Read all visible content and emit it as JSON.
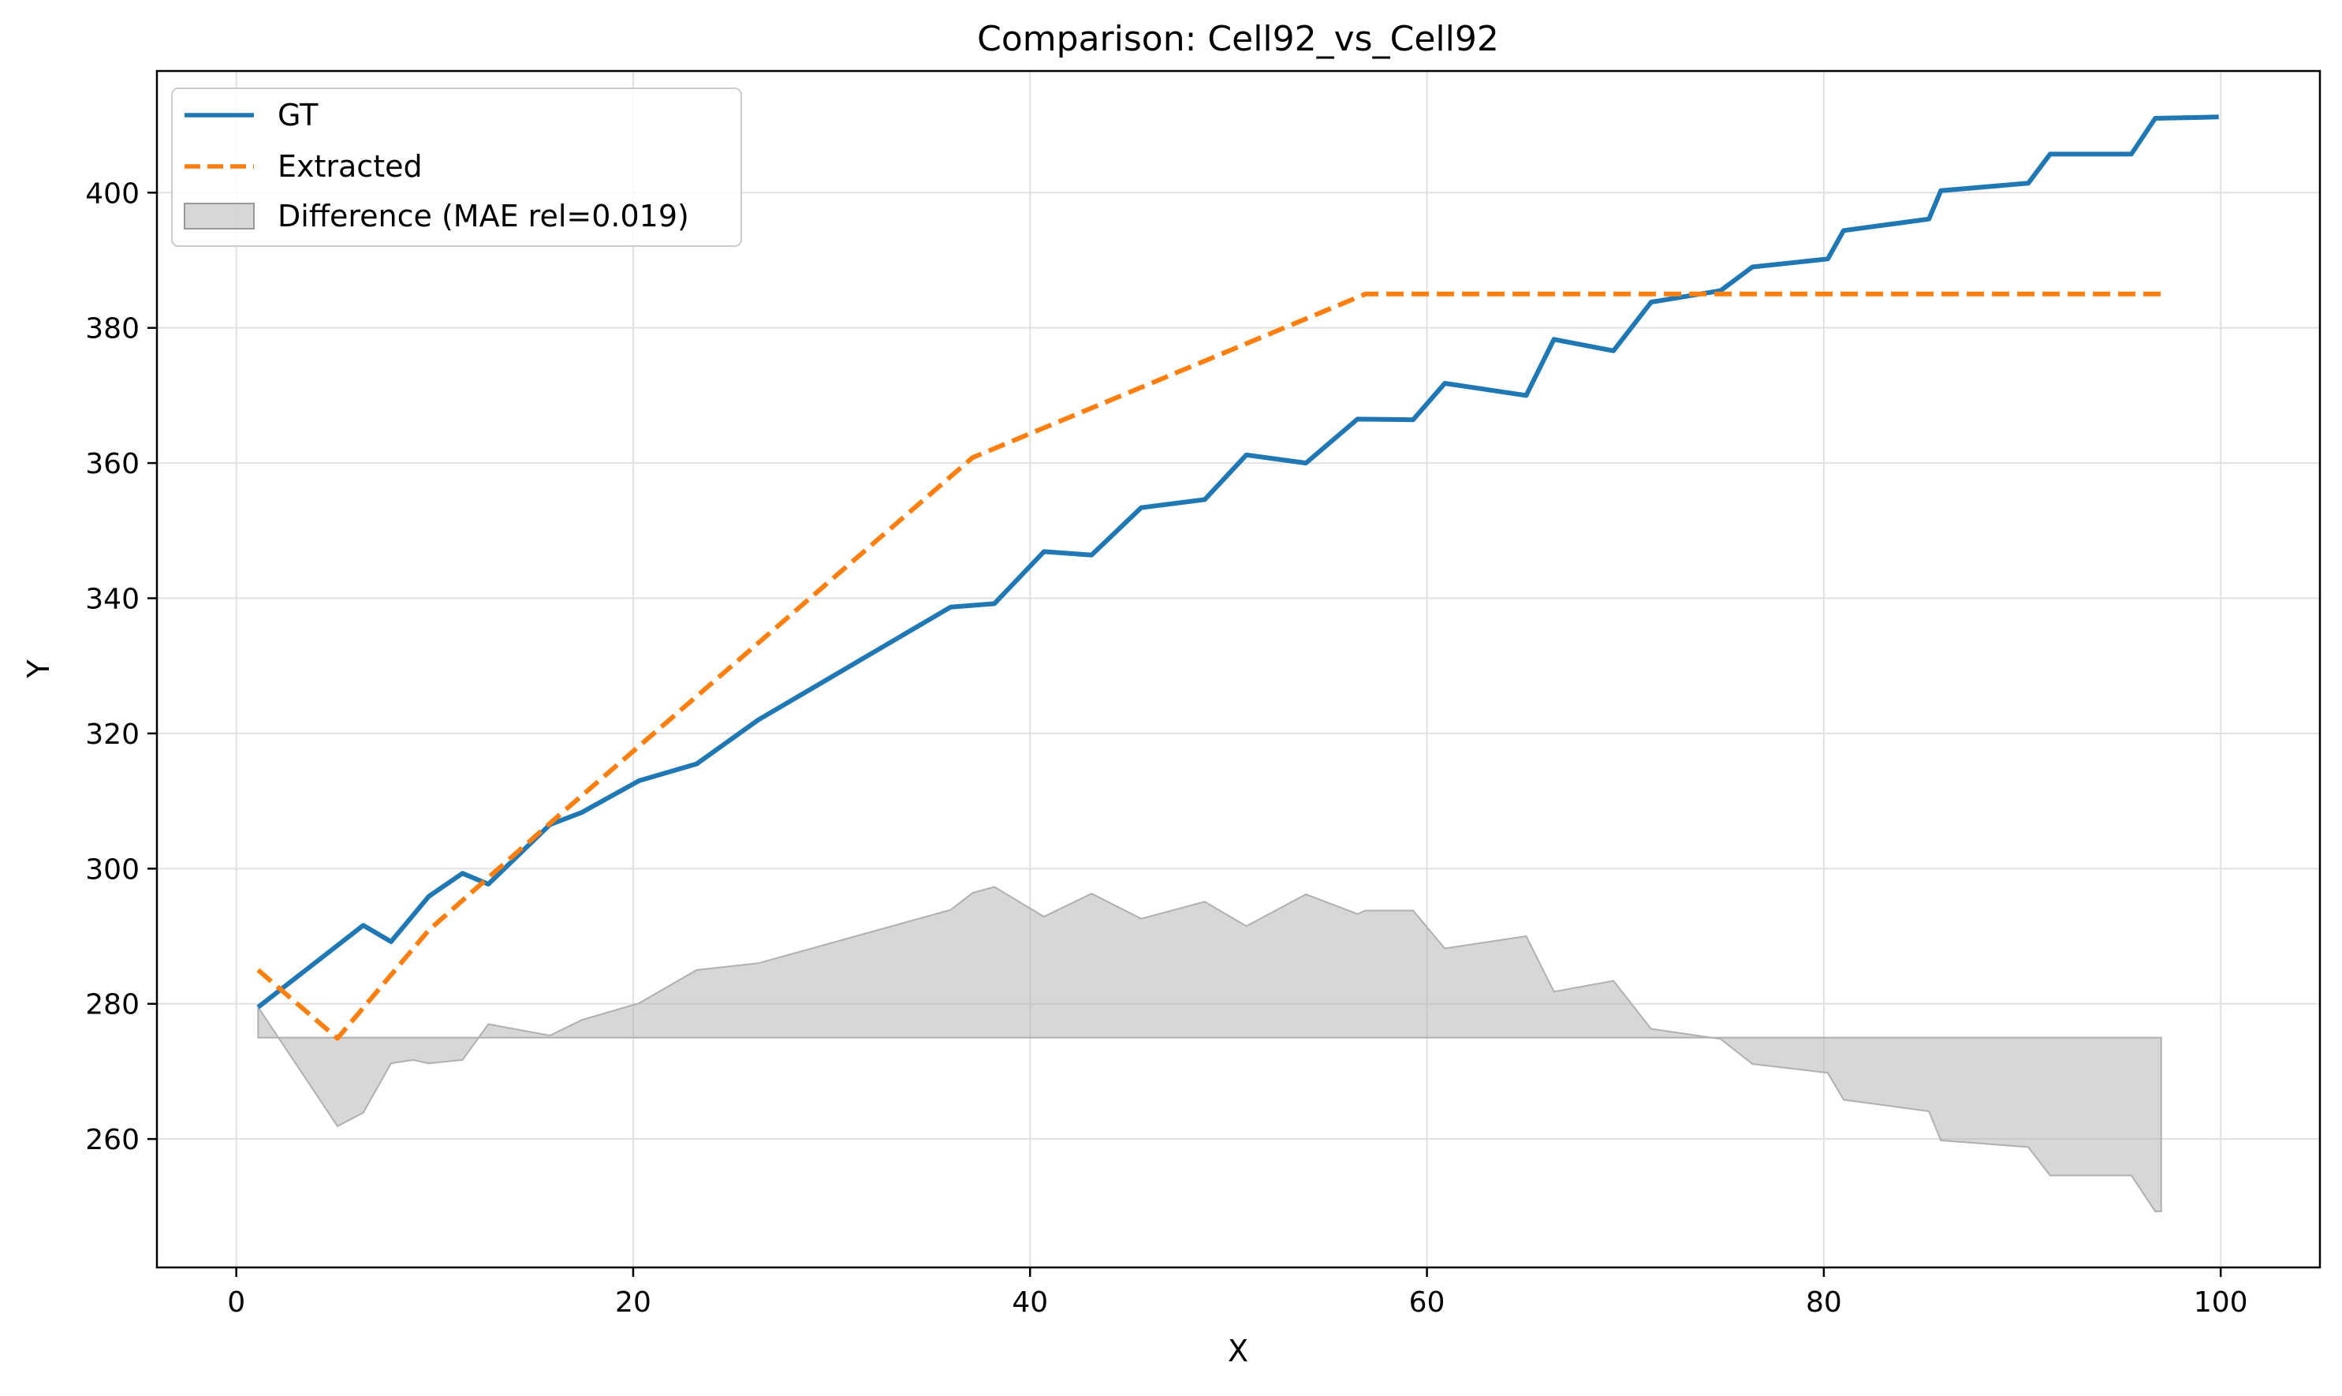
{
  "chart_data": {
    "type": "line",
    "title": "Comparison: Cell92_vs_Cell92",
    "xlabel": "X",
    "ylabel": "Y",
    "xlim": [
      -4,
      105
    ],
    "ylim": [
      241,
      418
    ],
    "xticks": [
      0,
      20,
      40,
      60,
      80,
      100
    ],
    "yticks": [
      260,
      280,
      300,
      320,
      340,
      360,
      380,
      400
    ],
    "xtick_labels": [
      "0",
      "20",
      "40",
      "60",
      "80",
      "100"
    ],
    "ytick_labels": [
      "260",
      "280",
      "300",
      "320",
      "340",
      "360",
      "380",
      "400"
    ],
    "grid": true,
    "legend_position": "top-left",
    "series": [
      {
        "name": "GT",
        "style": "solid",
        "color": "#1f77b4",
        "x": [
          1.1,
          6.4,
          7.8,
          9.7,
          11.4,
          12.7,
          15.8,
          17.4,
          20.3,
          23.2,
          26.3,
          36.0,
          38.2,
          40.7,
          43.1,
          45.6,
          48.8,
          50.9,
          53.9,
          56.5,
          59.3,
          60.9,
          65.0,
          66.4,
          69.4,
          71.3,
          74.8,
          76.4,
          80.2,
          81.0,
          85.3,
          85.9,
          90.3,
          91.4,
          95.5,
          96.7,
          99.9
        ],
        "y": [
          279.5,
          291.6,
          289.2,
          295.9,
          299.3,
          297.7,
          306.5,
          308.3,
          313.0,
          315.5,
          322.0,
          338.7,
          339.2,
          346.9,
          346.4,
          353.4,
          354.6,
          361.2,
          360.0,
          366.5,
          366.4,
          371.8,
          370.0,
          378.3,
          376.6,
          383.8,
          385.5,
          389.0,
          390.2,
          394.4,
          396.1,
          400.3,
          401.4,
          405.7,
          405.7,
          411.0,
          411.2
        ]
      },
      {
        "name": "Extracted",
        "style": "dashed",
        "color": "#ff7f0e",
        "x": [
          1.1,
          5.1,
          9.7,
          16.0,
          37.1,
          56.9,
          74.5,
          97.0
        ],
        "y": [
          285.0,
          274.9,
          290.9,
          307.2,
          360.8,
          385.0,
          385.0,
          385.0
        ]
      }
    ],
    "difference_fill": {
      "name": "Difference (MAE rel=0.019)",
      "color": "#b0b0b0",
      "baseline": 275.0,
      "x": [
        1.1,
        5.1,
        6.4,
        7.8,
        8.9,
        9.7,
        11.4,
        12.7,
        15.8,
        17.4,
        20.3,
        23.2,
        26.3,
        36.0,
        37.1,
        38.2,
        40.7,
        43.1,
        45.6,
        48.8,
        50.9,
        53.9,
        56.5,
        56.9,
        59.3,
        60.9,
        65.0,
        66.4,
        69.4,
        71.3,
        74.8,
        76.4,
        80.2,
        81.0,
        85.3,
        85.9,
        90.3,
        91.4,
        95.5,
        96.7,
        97.0
      ],
      "y": [
        279.5,
        261.9,
        263.9,
        271.2,
        271.7,
        271.2,
        271.7,
        277.0,
        275.3,
        277.6,
        280.1,
        285.0,
        286.0,
        293.9,
        296.4,
        297.3,
        292.9,
        296.3,
        292.6,
        295.1,
        291.5,
        296.2,
        293.3,
        293.8,
        293.8,
        288.2,
        290.0,
        281.8,
        283.4,
        276.3,
        274.8,
        271.1,
        269.8,
        265.8,
        264.1,
        259.8,
        258.8,
        254.6,
        254.6,
        249.3,
        249.3
      ]
    }
  }
}
